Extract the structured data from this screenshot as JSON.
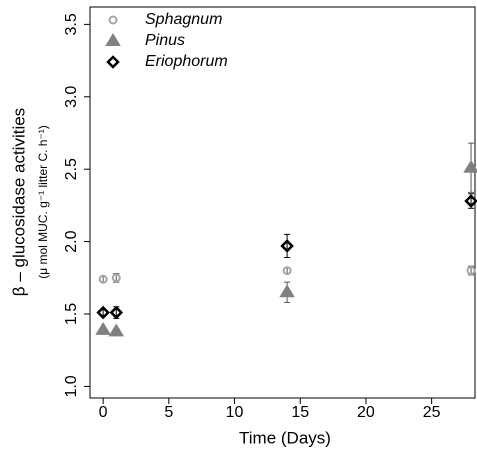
{
  "chart_data": {
    "type": "scatter",
    "xlabel": "Time (Days)",
    "ylabel": "β – glucosidase activities",
    "ylabel_units": "(μ mol MUC. g⁻¹ litter C. h⁻¹)",
    "x": [
      0,
      1,
      14,
      28
    ],
    "series": [
      {
        "name": "Sphagnum",
        "color": "#a6a6a6",
        "marker": "circle",
        "values": [
          1.74,
          1.75,
          1.8,
          1.8
        ],
        "errors": [
          0.02,
          0.03,
          0.02,
          0.03
        ]
      },
      {
        "name": "Pinus",
        "color": "#808080",
        "marker": "triangle",
        "values": [
          1.39,
          1.38,
          1.65,
          2.51
        ],
        "errors": [
          0.02,
          0.02,
          0.07,
          0.17
        ]
      },
      {
        "name": "Eriophorum",
        "color": "#000000",
        "marker": "diamond",
        "values": [
          1.51,
          1.51,
          1.97,
          2.28
        ],
        "errors": [
          0.02,
          0.04,
          0.08,
          0.05
        ]
      }
    ],
    "xlim": [
      -1,
      28.3
    ],
    "ylim": [
      0.92,
      3.62
    ],
    "xticks": [
      0,
      5,
      10,
      15,
      20,
      25
    ],
    "yticks": [
      {
        "value": 1,
        "label": "1.0"
      },
      {
        "value": 1.5,
        "label": "1.5"
      },
      {
        "value": 2,
        "label": "2.0"
      },
      {
        "value": 2.5,
        "label": "2.5"
      },
      {
        "value": 3,
        "label": "3.0"
      },
      {
        "value": 3.5,
        "label": "3.5"
      }
    ],
    "legend": "top-left",
    "grid": false
  }
}
